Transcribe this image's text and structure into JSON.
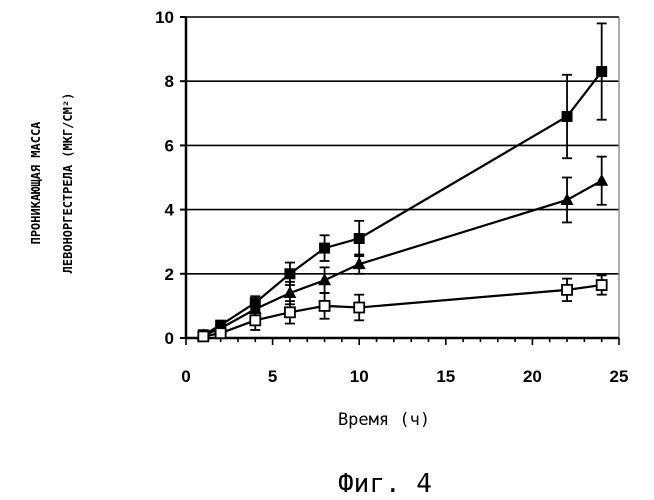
{
  "chart_data": {
    "type": "line",
    "xlabel": "Время (ч)",
    "ylabel_lines": [
      "ПРОНИКАЮЩАЯ МАССА",
      "ЛЕВОНОРГЕСТРЕЛА (МКГ/СМ²)"
    ],
    "caption": "Фиг. 4",
    "xlim": [
      0,
      25
    ],
    "ylim": [
      0,
      10
    ],
    "x_ticks": [
      "0",
      "5",
      "10",
      "15",
      "20",
      "25"
    ],
    "y_ticks": [
      "0",
      "2",
      "4",
      "6",
      "8",
      "10"
    ],
    "grid": "horizontal",
    "series": [
      {
        "marker": "filled-square",
        "x": [
          1,
          2,
          4,
          6,
          8,
          10,
          22,
          24
        ],
        "y": [
          0.1,
          0.4,
          1.1,
          2.0,
          2.8,
          3.1,
          6.9,
          8.3
        ],
        "err": [
          0.05,
          0.1,
          0.2,
          0.35,
          0.4,
          0.55,
          1.3,
          1.5
        ]
      },
      {
        "marker": "filled-triangle",
        "x": [
          1,
          2,
          4,
          6,
          8,
          10,
          22,
          24
        ],
        "y": [
          0.08,
          0.3,
          0.9,
          1.4,
          1.8,
          2.3,
          4.3,
          4.9
        ],
        "err": [
          0.05,
          0.1,
          0.25,
          0.35,
          0.4,
          0.3,
          0.7,
          0.75
        ]
      },
      {
        "marker": "open-square",
        "x": [
          1,
          2,
          4,
          6,
          8,
          10,
          22,
          24
        ],
        "y": [
          0.05,
          0.15,
          0.55,
          0.8,
          1.0,
          0.95,
          1.5,
          1.65
        ],
        "err": [
          0.05,
          0.1,
          0.3,
          0.35,
          0.4,
          0.4,
          0.35,
          0.3
        ]
      }
    ]
  }
}
